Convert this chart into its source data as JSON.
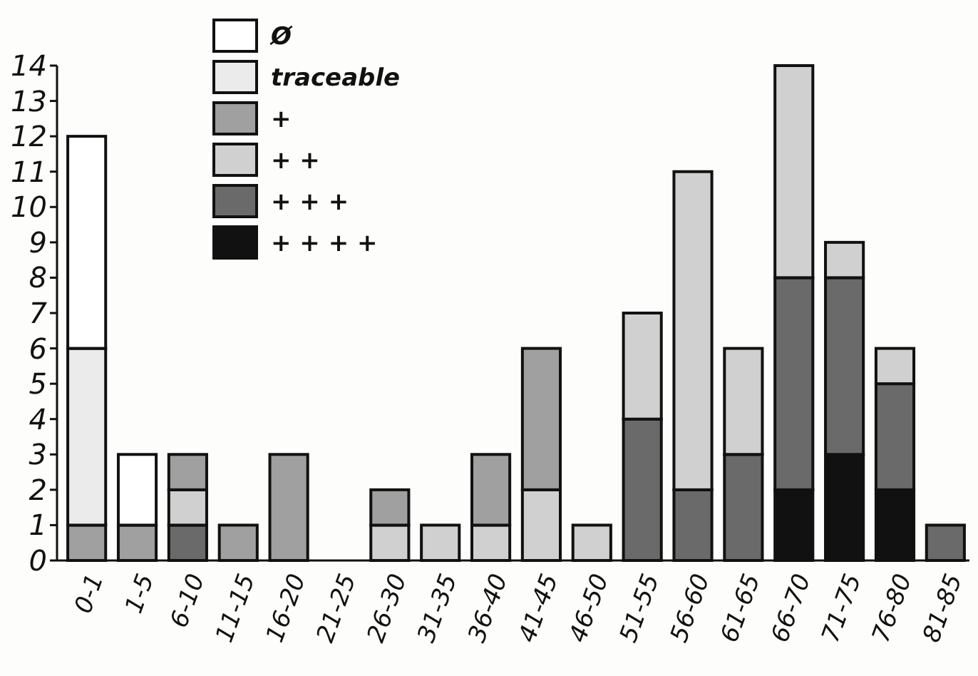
{
  "chart_data": {
    "type": "bar",
    "stacked": true,
    "legend": "top left",
    "grid": false,
    "categories": [
      "0-1",
      "1-5",
      "6-10",
      "11-15",
      "16-20",
      "21-25",
      "26-30",
      "31-35",
      "36-40",
      "41-45",
      "46-50",
      "51-55",
      "56-60",
      "61-65",
      "66-70",
      "71-75",
      "76-80",
      "81-85"
    ],
    "ylim": [
      0,
      14
    ],
    "yticks": [
      0,
      1,
      2,
      3,
      4,
      5,
      6,
      7,
      8,
      9,
      10,
      11,
      12,
      13,
      14
    ],
    "series": [
      {
        "name": "+ + + +",
        "color": "#111111",
        "values": [
          0,
          0,
          0,
          0,
          0,
          0,
          0,
          0,
          0,
          0,
          0,
          0,
          0,
          0,
          2,
          3,
          2,
          0
        ]
      },
      {
        "name": "+ + +",
        "color": "#6a6a6a",
        "values": [
          0,
          0,
          1,
          0,
          0,
          0,
          0,
          0,
          0,
          0,
          0,
          4,
          2,
          3,
          6,
          5,
          3,
          1
        ]
      },
      {
        "name": "+ +",
        "color": "#d0d0d0",
        "values": [
          0,
          0,
          1,
          0,
          0,
          0,
          1,
          1,
          1,
          2,
          1,
          3,
          9,
          3,
          6,
          1,
          1,
          0
        ]
      },
      {
        "name": "+",
        "color": "#a0a0a0",
        "values": [
          1,
          1,
          1,
          1,
          3,
          0,
          1,
          0,
          2,
          4,
          0,
          0,
          0,
          0,
          0,
          0,
          0,
          0
        ]
      },
      {
        "name": "traceable",
        "color": "#ebebeb",
        "values": [
          5,
          0,
          0,
          0,
          0,
          0,
          0,
          0,
          0,
          0,
          0,
          0,
          0,
          0,
          0,
          0,
          0,
          0
        ]
      },
      {
        "name": "Ø",
        "color": "#ffffff",
        "values": [
          6,
          2,
          0,
          0,
          0,
          0,
          0,
          0,
          0,
          0,
          0,
          0,
          0,
          0,
          0,
          0,
          0,
          0
        ]
      }
    ]
  }
}
